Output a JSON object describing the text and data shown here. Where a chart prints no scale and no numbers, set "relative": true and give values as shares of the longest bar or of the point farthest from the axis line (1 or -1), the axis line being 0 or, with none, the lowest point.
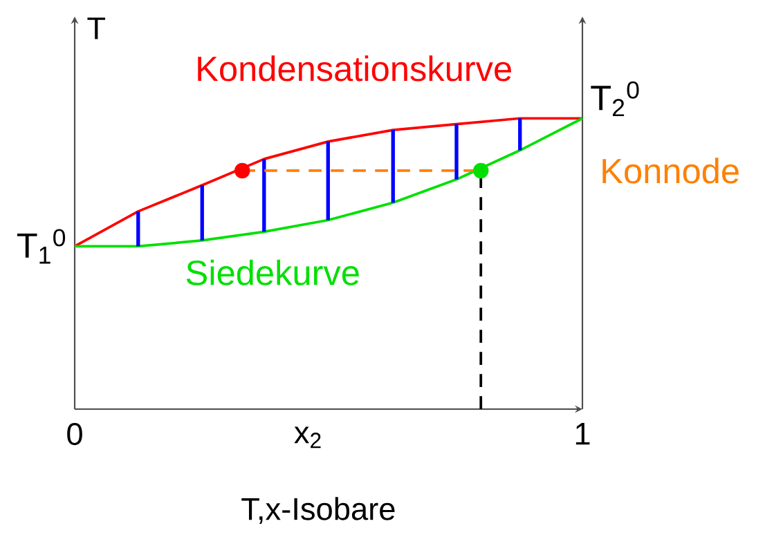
{
  "chart_data": {
    "type": "line",
    "title": "T,x-Isobare",
    "xlabel": "x$_{2}$",
    "ylabel": "T",
    "relative": true,
    "xlim": [
      0,
      1
    ],
    "xticks": [
      0,
      1
    ],
    "annotations": [
      {
        "text": "T$_{1}$$^{0}$",
        "x": 0,
        "y": 0.56
      },
      {
        "text": "T$_{2}$$^{0}$",
        "x": 1,
        "y": 1
      }
    ],
    "series": [
      {
        "name": "Kondensationskurve",
        "color": "#ff0000",
        "marker": "none",
        "line_style": "solid",
        "x": [
          0,
          0.125,
          0.251,
          0.373,
          0.499,
          0.627,
          0.752,
          0.877,
          1
        ],
        "values": [
          0.56,
          0.68,
          0.77,
          0.86,
          0.92,
          0.96,
          0.98,
          1.0,
          1.0
        ]
      },
      {
        "name": "Siedekurve",
        "color": "#00e000",
        "marker": "none",
        "line_style": "solid",
        "x": [
          0,
          0.125,
          0.251,
          0.373,
          0.499,
          0.627,
          0.752,
          0.877,
          1
        ],
        "values": [
          0.56,
          0.56,
          0.58,
          0.61,
          0.65,
          0.71,
          0.79,
          0.89,
          1.0
        ]
      },
      {
        "color": "#0000ff",
        "marker": "none",
        "line_style": "solid",
        "x": [
          0.125,
          0.125
        ],
        "values": [
          0.56,
          0.68
        ]
      },
      {
        "color": "#0000ff",
        "marker": "none",
        "line_style": "solid",
        "x": [
          0.251,
          0.251
        ],
        "values": [
          0.58,
          0.77
        ]
      },
      {
        "color": "#0000ff",
        "marker": "none",
        "line_style": "solid",
        "x": [
          0.373,
          0.373
        ],
        "values": [
          0.61,
          0.86
        ]
      },
      {
        "color": "#0000ff",
        "marker": "none",
        "line_style": "solid",
        "x": [
          0.499,
          0.499
        ],
        "values": [
          0.65,
          0.92
        ]
      },
      {
        "color": "#0000ff",
        "marker": "none",
        "line_style": "solid",
        "x": [
          0.627,
          0.627
        ],
        "values": [
          0.71,
          0.96
        ]
      },
      {
        "color": "#0000ff",
        "marker": "none",
        "line_style": "solid",
        "x": [
          0.752,
          0.752
        ],
        "values": [
          0.79,
          0.98
        ]
      },
      {
        "color": "#0000ff",
        "marker": "none",
        "line_style": "solid",
        "x": [
          0.877,
          0.877
        ],
        "values": [
          0.89,
          1.0
        ]
      },
      {
        "name": "Konnode",
        "color": "#ff8000",
        "colors": [
          "#ff0000",
          "#00e000"
        ],
        "marker": "circle",
        "line_style": "dashed",
        "x": [
          0.33,
          0.8
        ],
        "values": [
          0.82,
          0.82
        ]
      },
      {
        "color": "#000000",
        "marker": "none",
        "line_style": "dashed",
        "x": [
          0.8,
          0.8
        ],
        "values": [
          0,
          0.82
        ]
      }
    ]
  }
}
